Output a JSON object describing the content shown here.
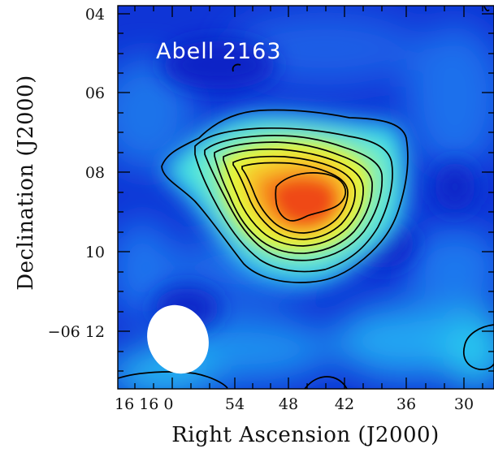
{
  "figure": {
    "title": "Abell 2163",
    "x_axis_label": "Right Ascension (J2000)",
    "y_axis_label": "Declination (J2000)",
    "x_ticks": [
      "16 16 0",
      "54",
      "48",
      "42",
      "36",
      "30"
    ],
    "y_ticks": [
      "04",
      "06",
      "08",
      "10",
      "−06 12"
    ],
    "colormap": [
      "#0b2bd0",
      "#1f7ff0",
      "#22d8f0",
      "#7ff0a8",
      "#f2f23a",
      "#f7a21f",
      "#ef3a14"
    ],
    "contour_color": "#000000",
    "beam_color": "#ffffff"
  }
}
